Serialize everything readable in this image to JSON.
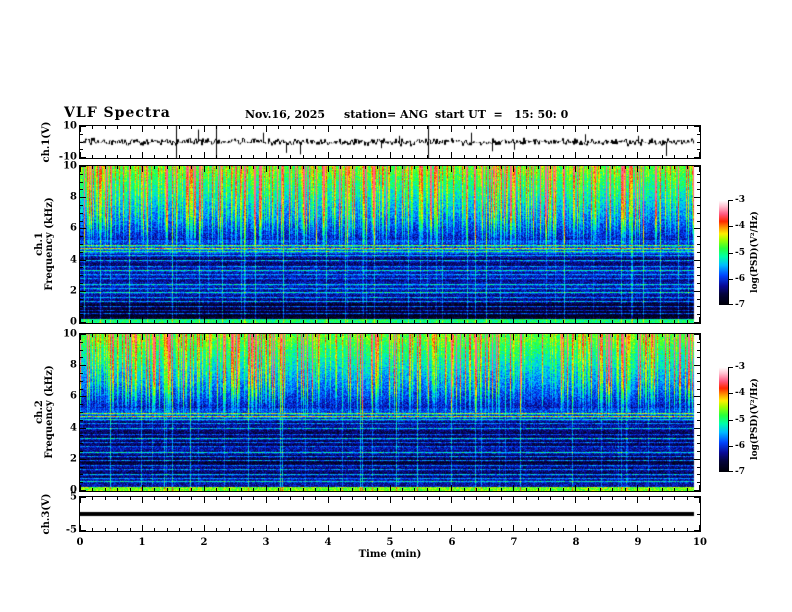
{
  "figure": {
    "title": "VLF Spectra",
    "date": "Nov.16, 2025",
    "station": "station= ANG",
    "start_ut": "start UT  =   15: 50: 0"
  },
  "xaxis": {
    "label": "Time (min)",
    "tick_labels": [
      "0",
      "1",
      "2",
      "3",
      "4",
      "5",
      "6",
      "7",
      "8",
      "9",
      "10"
    ]
  },
  "panels": {
    "ch1_wave": {
      "ylabel": "ch.1(V)",
      "ytick_labels": [
        "10",
        "-10"
      ],
      "ytick_values": [
        10,
        -10
      ]
    },
    "spec1": {
      "ylabel_line1": "ch.1",
      "ylabel_line2": "Frequency (kHz)",
      "ytick_labels": [
        "0",
        "2",
        "4",
        "6",
        "8",
        "10"
      ],
      "ytick_values": [
        0,
        2,
        4,
        6,
        8,
        10
      ]
    },
    "spec2": {
      "ylabel_line1": "ch.2",
      "ylabel_line2": "Frequency (kHz)",
      "ytick_labels": [
        "0",
        "2",
        "4",
        "6",
        "8",
        "10"
      ],
      "ytick_values": [
        0,
        2,
        4,
        6,
        8,
        10
      ]
    },
    "ch3_wave": {
      "ylabel": "ch.3(V)",
      "ytick_labels": [
        "5",
        "-5"
      ],
      "ytick_values": [
        5,
        -5
      ]
    }
  },
  "colorbars": [
    {
      "label": "log(PSD)(V²/Hz)",
      "tick_labels": [
        "-3",
        "-4",
        "-5",
        "-6",
        "-7"
      ]
    },
    {
      "label": "log(PSD)(V²/Hz)",
      "tick_labels": [
        "-3",
        "-4",
        "-5",
        "-6",
        "-7"
      ]
    }
  ],
  "chart_data": [
    {
      "type": "line",
      "name": "ch1_voltage",
      "ylabel": "ch.1(V)",
      "xlabel": "Time (min)",
      "xlim": [
        0,
        10
      ],
      "ylim": [
        -10,
        10
      ],
      "data_end_min": 9.9,
      "noise_amp_v": 1.5,
      "seed": 101,
      "description": "Dense broadband noise of about ±1.5 V centred on 0 V for the whole 9.9 min record, with impulsive spikes; a few saturate the full ±10 V scale.",
      "spikes": [
        [
          1.55,
          10.5
        ],
        [
          2.2,
          10.5
        ],
        [
          5.62,
          10.5
        ],
        [
          1.9,
          8
        ],
        [
          2.95,
          6
        ],
        [
          3.32,
          -7
        ],
        [
          3.55,
          -8
        ],
        [
          4.85,
          -4
        ],
        [
          5.15,
          4
        ],
        [
          6.3,
          6
        ],
        [
          6.65,
          -6
        ],
        [
          7.0,
          -5
        ],
        [
          8.15,
          5
        ],
        [
          9.0,
          4
        ],
        [
          9.45,
          -9
        ]
      ]
    },
    {
      "type": "heatmap",
      "name": "ch1_spectrogram",
      "ylabel": "Frequency (kHz)",
      "xlabel": "Time (min)",
      "xlim": [
        0,
        10
      ],
      "ylim": [
        0,
        10
      ],
      "zlim": [
        -7,
        -3
      ],
      "zlabel": "log(PSD)(V²/Hz)",
      "data_end_min": 9.9,
      "seed": 7,
      "description": "VLF spectrogram: bright green/yellow band near 10 kHz, vertical sferic streaks (green to orange/red) dominating 5-10 kHz, dark blue/black background below ~5 kHz crossed by persistent cyan/green narrowband lines, bright speckled band at 0 kHz edge.",
      "narrowband_lines_khz": [
        [
          4.95,
          0.4
        ],
        [
          4.75,
          0.5
        ],
        [
          4.55,
          0.3
        ],
        [
          4.3,
          0.22
        ],
        [
          3.95,
          0.28
        ],
        [
          3.6,
          0.2
        ],
        [
          3.35,
          0.3
        ],
        [
          3.05,
          0.22
        ],
        [
          2.8,
          0.18
        ],
        [
          2.45,
          0.28
        ],
        [
          2.15,
          0.22
        ],
        [
          1.9,
          0.3
        ],
        [
          1.6,
          0.2
        ],
        [
          1.35,
          0.26
        ],
        [
          1.05,
          0.3
        ],
        [
          0.8,
          0.22
        ],
        [
          0.55,
          0.28
        ]
      ],
      "colormap_stops": [
        [
          0.0,
          0,
          0,
          10
        ],
        [
          0.1,
          5,
          5,
          60
        ],
        [
          0.18,
          10,
          10,
          150
        ],
        [
          0.28,
          0,
          70,
          255
        ],
        [
          0.38,
          0,
          190,
          255
        ],
        [
          0.46,
          0,
          255,
          170
        ],
        [
          0.54,
          40,
          255,
          60
        ],
        [
          0.62,
          160,
          255,
          0
        ],
        [
          0.68,
          255,
          240,
          0
        ],
        [
          0.74,
          255,
          150,
          0
        ],
        [
          0.8,
          255,
          40,
          0
        ],
        [
          0.87,
          255,
          90,
          130
        ],
        [
          0.94,
          255,
          190,
          205
        ],
        [
          1.0,
          255,
          255,
          255
        ]
      ]
    },
    {
      "type": "heatmap",
      "name": "ch2_spectrogram",
      "ylabel": "Frequency (kHz)",
      "xlabel": "Time (min)",
      "xlim": [
        0,
        10
      ],
      "ylim": [
        0,
        10
      ],
      "zlim": [
        -7,
        -3
      ],
      "zlabel": "log(PSD)(V²/Hz)",
      "data_end_min": 9.9,
      "seed": 13,
      "description": "Same structure as ch.1 spectrogram: sferic streaks above ~5 kHz, dark low-frequency region with narrowband cyan/green lines, bright bottom edge.",
      "narrowband_lines_khz": [
        [
          4.95,
          0.4
        ],
        [
          4.75,
          0.5
        ],
        [
          4.55,
          0.3
        ],
        [
          4.3,
          0.22
        ],
        [
          3.95,
          0.28
        ],
        [
          3.6,
          0.2
        ],
        [
          3.35,
          0.3
        ],
        [
          3.05,
          0.22
        ],
        [
          2.8,
          0.18
        ],
        [
          2.45,
          0.28
        ],
        [
          2.15,
          0.22
        ],
        [
          1.9,
          0.3
        ],
        [
          1.6,
          0.2
        ],
        [
          1.35,
          0.26
        ],
        [
          1.05,
          0.3
        ],
        [
          0.8,
          0.22
        ],
        [
          0.55,
          0.28
        ]
      ],
      "colormap_stops": [
        [
          0.0,
          0,
          0,
          10
        ],
        [
          0.1,
          5,
          5,
          60
        ],
        [
          0.18,
          10,
          10,
          150
        ],
        [
          0.28,
          0,
          70,
          255
        ],
        [
          0.38,
          0,
          190,
          255
        ],
        [
          0.46,
          0,
          255,
          170
        ],
        [
          0.54,
          40,
          255,
          60
        ],
        [
          0.62,
          160,
          255,
          0
        ],
        [
          0.68,
          255,
          240,
          0
        ],
        [
          0.74,
          255,
          150,
          0
        ],
        [
          0.8,
          255,
          40,
          0
        ],
        [
          0.87,
          255,
          90,
          130
        ],
        [
          0.94,
          255,
          190,
          205
        ],
        [
          1.0,
          255,
          255,
          255
        ]
      ]
    },
    {
      "type": "line",
      "name": "ch3_voltage",
      "ylabel": "ch.3(V)",
      "xlabel": "Time (min)",
      "xlim": [
        0,
        10
      ],
      "ylim": [
        -5,
        5
      ],
      "data_end_min": 9.9,
      "value": 0,
      "description": "Constant 0 V: a single thick flat black line across the whole record."
    }
  ]
}
